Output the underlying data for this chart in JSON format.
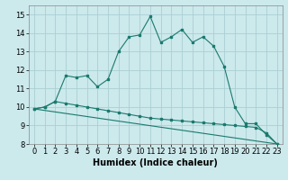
{
  "xlabel": "Humidex (Indice chaleur)",
  "background_color": "#cce9ec",
  "grid_color": "#aacfd4",
  "line_color": "#1a7a6e",
  "xlim": [
    -0.5,
    23.5
  ],
  "ylim": [
    8,
    15.5
  ],
  "yticks": [
    8,
    9,
    10,
    11,
    12,
    13,
    14,
    15
  ],
  "xticks": [
    0,
    1,
    2,
    3,
    4,
    5,
    6,
    7,
    8,
    9,
    10,
    11,
    12,
    13,
    14,
    15,
    16,
    17,
    18,
    19,
    20,
    21,
    22,
    23
  ],
  "series1_x": [
    0,
    1,
    2,
    3,
    4,
    5,
    6,
    7,
    8,
    9,
    10,
    11,
    12,
    13,
    14,
    15,
    16,
    17,
    18,
    19,
    20,
    21,
    22,
    23
  ],
  "series1_y": [
    9.9,
    10.0,
    10.3,
    11.7,
    11.6,
    11.7,
    11.1,
    11.5,
    13.0,
    13.8,
    13.9,
    14.9,
    13.5,
    13.8,
    14.2,
    13.5,
    13.8,
    13.3,
    12.2,
    10.0,
    9.1,
    9.1,
    8.5,
    8.0
  ],
  "series2_x": [
    0,
    1,
    2,
    3,
    4,
    5,
    6,
    7,
    8,
    9,
    10,
    11,
    12,
    13,
    14,
    15,
    16,
    17,
    18,
    19,
    20,
    21,
    22,
    23
  ],
  "series2_y": [
    9.9,
    10.0,
    10.3,
    10.2,
    10.1,
    10.0,
    9.9,
    9.8,
    9.7,
    9.6,
    9.5,
    9.4,
    9.35,
    9.3,
    9.25,
    9.2,
    9.15,
    9.1,
    9.05,
    9.0,
    8.95,
    8.9,
    8.6,
    8.0
  ],
  "series3_x": [
    0,
    23
  ],
  "series3_y": [
    9.9,
    8.0
  ],
  "font_size": 7,
  "tick_font_size": 6
}
